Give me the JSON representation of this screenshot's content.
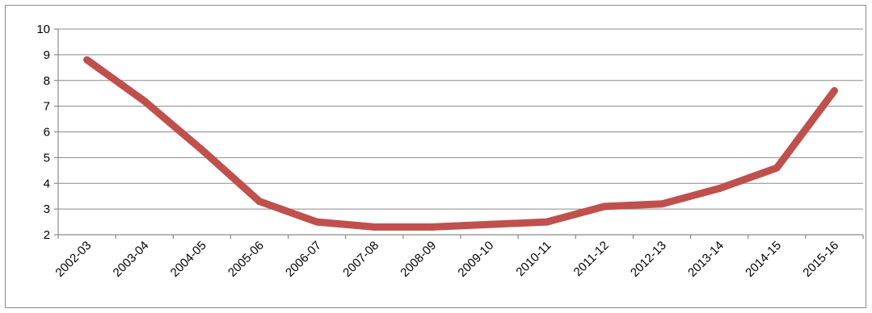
{
  "chart_data": {
    "type": "line",
    "title": "",
    "xlabel": "",
    "ylabel": "",
    "categories": [
      "2002-03",
      "2003-04",
      "2004-05",
      "2005-06",
      "2006-07",
      "2007-08",
      "2008-09",
      "2009-10",
      "2010-11",
      "2011-12",
      "2012-13",
      "2013-14",
      "2014-15",
      "2015-16"
    ],
    "series": [
      {
        "values": [
          8.8,
          7.2,
          5.3,
          3.3,
          2.5,
          2.3,
          2.3,
          2.4,
          2.5,
          3.1,
          3.2,
          3.8,
          4.6,
          7.6
        ],
        "color": "#c0504d"
      }
    ],
    "ylim": [
      2,
      10
    ],
    "yticks": [
      2,
      3,
      4,
      5,
      6,
      7,
      8,
      9,
      10
    ],
    "grid": true,
    "legend": "none"
  }
}
